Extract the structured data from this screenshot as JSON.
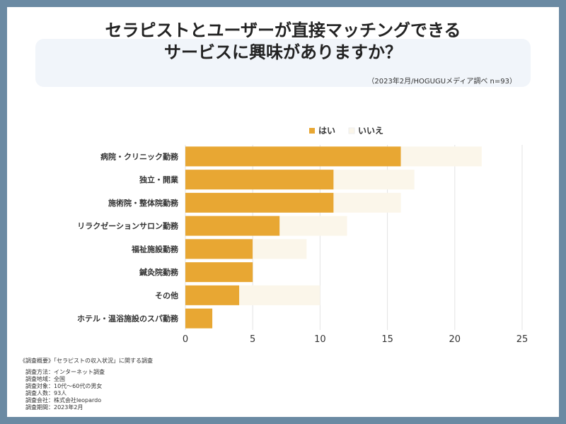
{
  "header": {
    "title_line1": "セラピストとユーザーが直接マッチングできる",
    "title_line2": "サービスに興味がありますか？",
    "source": "（2023年2月/HOGUGUメディア調べ n=93）"
  },
  "colors": {
    "yes": "#e8a733",
    "no": "#fbf6ea",
    "grid": "#e3e3e3",
    "background": "#6b8aa3",
    "band": "#f1f5fa"
  },
  "chart_data": {
    "type": "bar",
    "orientation": "horizontal",
    "stacked": true,
    "categories": [
      "病院・クリニック勤務",
      "独立・開業",
      "施術院・整体院勤務",
      "リラクゼーションサロン勤務",
      "福祉施設勤務",
      "鍼灸院勤務",
      "その他",
      "ホテル・温浴施設のスパ勤務"
    ],
    "series": [
      {
        "name": "はい",
        "values": [
          16,
          11,
          11,
          7,
          5,
          5,
          4,
          2
        ]
      },
      {
        "name": "いいえ",
        "values": [
          6,
          6,
          5,
          5,
          4,
          0,
          6,
          0
        ]
      }
    ],
    "xlim": [
      0,
      25
    ],
    "xticks": [
      0,
      5,
      10,
      15,
      20,
      25
    ],
    "legend": "top",
    "grid": true
  },
  "notes": {
    "heading": "《調査概要》「セラピストの収入状況」に関する調査",
    "lines": [
      "調査方法：インターネット調査",
      "調査地域：全国",
      "調査対象：10代～60代の男女",
      "調査人数：93人",
      "調査会社：株式会社leopardo",
      "調査期間：2023年2月"
    ]
  }
}
